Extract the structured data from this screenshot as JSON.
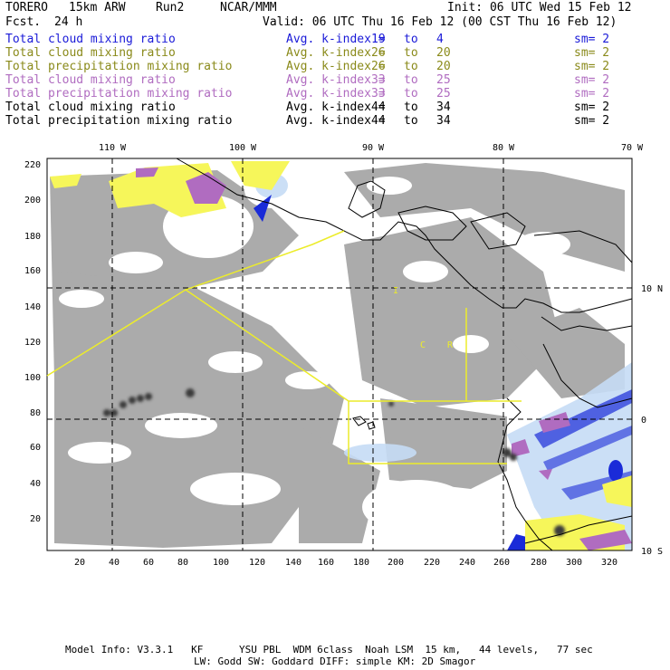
{
  "header": {
    "model": "TORERO",
    "resolution": "15km ARW",
    "run": "Run2",
    "org": "NCAR/MMM",
    "init": "Init: 06 UTC Wed 15 Feb 12",
    "fcst_label": "Fcst.",
    "fcst_value": "24 h",
    "valid": "Valid: 06 UTC Thu 16 Feb 12 (00 CST Thu 16 Feb 12)"
  },
  "legend": [
    {
      "field": "Total cloud mixing ratio",
      "index": "Avg. k-index =",
      "from": "19",
      "to_word": "to",
      "to": "4",
      "sm": "sm= 2",
      "color": "#1a1ad8"
    },
    {
      "field": "Total cloud mixing ratio",
      "index": "Avg. k-index =",
      "from": "26",
      "to_word": "to",
      "to": "20",
      "sm": "sm= 2",
      "color": "#8a8a1a"
    },
    {
      "field": "Total precipitation mixing ratio",
      "index": "Avg. k-index =",
      "from": "26",
      "to_word": "to",
      "to": "20",
      "sm": "sm= 2",
      "color": "#8a8a1a"
    },
    {
      "field": "Total cloud mixing ratio",
      "index": "Avg. k-index =",
      "from": "33",
      "to_word": "to",
      "to": "25",
      "sm": "sm= 2",
      "color": "#b06cc0"
    },
    {
      "field": "Total precipitation mixing ratio",
      "index": "Avg. k-index =",
      "from": "33",
      "to_word": "to",
      "to": "25",
      "sm": "sm= 2",
      "color": "#b06cc0"
    },
    {
      "field": "Total cloud mixing ratio",
      "index": "Avg. k-index =",
      "from": "44",
      "to_word": "to",
      "to": "34",
      "sm": "sm= 2",
      "color": "#000000"
    },
    {
      "field": "Total precipitation mixing ratio",
      "index": "Avg. k-index =",
      "from": "44",
      "to_word": "to",
      "to": "34",
      "sm": "sm= 2",
      "color": "#000000"
    }
  ],
  "axes": {
    "top_lon_labels": [
      "110 W",
      "100 W",
      "90 W",
      "80 W",
      "70 W"
    ],
    "right_lat_labels": [
      "10 N",
      "0",
      "10 S"
    ],
    "x_ticks": [
      "20",
      "40",
      "60",
      "80",
      "100",
      "120",
      "140",
      "160",
      "180",
      "200",
      "220",
      "240",
      "260",
      "280",
      "300",
      "320"
    ],
    "y_ticks": [
      "220",
      "200",
      "180",
      "160",
      "140",
      "120",
      "100",
      "80",
      "60",
      "40",
      "20"
    ]
  },
  "box_labels": {
    "a": "I",
    "b": "C",
    "c": "R"
  },
  "footer": {
    "line1": "Model Info: V3.3.1   KF      YSU PBL  WDM 6class  Noah LSM  15 km,   44 levels,   77 sec",
    "line2": "LW: Godd SW: Goddard DIFF: simple KM: 2D Smagor"
  },
  "colors": {
    "cloud_gray": "#a7a7a7",
    "light_gray": "#c9c9c9",
    "yellow": "#f6f65a",
    "purple": "#b06cc0",
    "blue": "#1a2bd8",
    "light_blue": "#c5dcf5",
    "boundary_yellow": "#ecec2a"
  }
}
